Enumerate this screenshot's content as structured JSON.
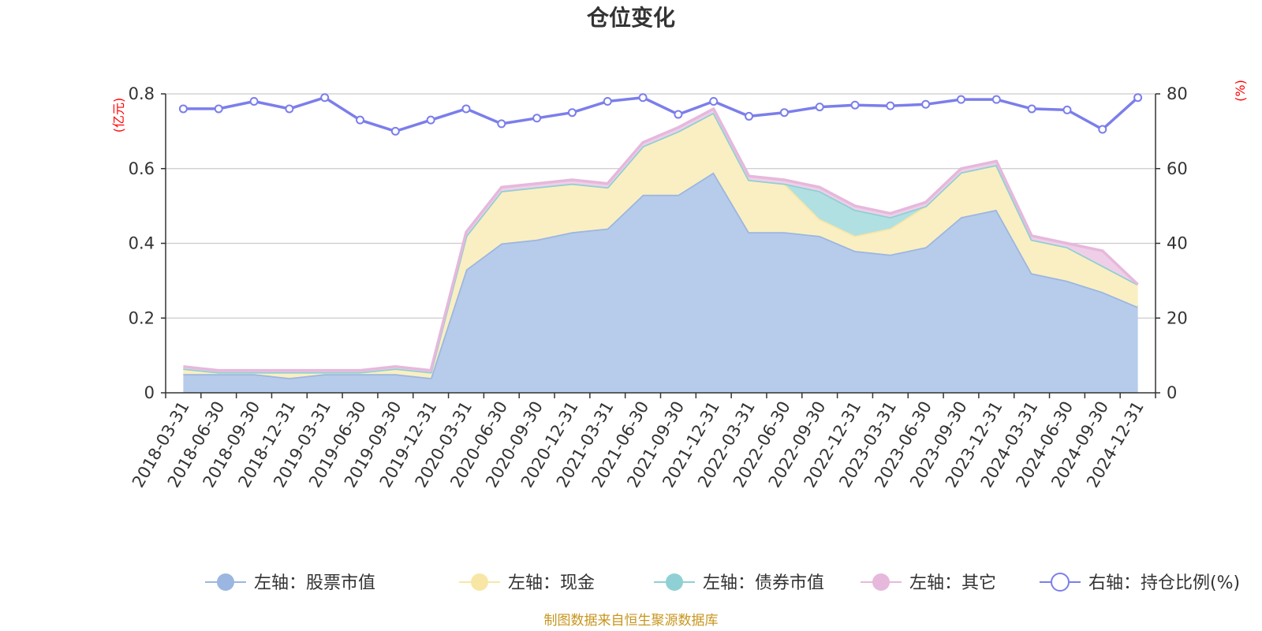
{
  "chart_data": {
    "type": "area",
    "title": "仓位变化",
    "left_axis": {
      "unit_label": "(亿元)",
      "ylim": [
        0,
        0.8
      ],
      "ticks": [
        "0",
        "0.2",
        "0.4",
        "0.6",
        "0.8"
      ]
    },
    "right_axis": {
      "unit_label": "(%)",
      "ylim": [
        0,
        80
      ],
      "ticks": [
        "0",
        "20",
        "40",
        "60",
        "80"
      ]
    },
    "grid": true,
    "legend_position": "bottom",
    "categories": [
      "2018-03-31",
      "2018-06-30",
      "2018-09-30",
      "2018-12-31",
      "2019-03-31",
      "2019-06-30",
      "2019-09-30",
      "2019-12-31",
      "2020-03-31",
      "2020-06-30",
      "2020-09-30",
      "2020-12-31",
      "2021-03-31",
      "2021-06-30",
      "2021-09-30",
      "2021-12-31",
      "2022-03-31",
      "2022-06-30",
      "2022-09-30",
      "2022-12-31",
      "2023-03-31",
      "2023-06-30",
      "2023-09-30",
      "2023-12-31",
      "2024-03-31",
      "2024-06-30",
      "2024-09-30",
      "2024-12-31"
    ],
    "series": [
      {
        "name": "左轴：股票市值",
        "axis": "left",
        "stacked": true,
        "color": "#9bb6e0",
        "fill": "#b7cbeb",
        "values": [
          0.05,
          0.05,
          0.05,
          0.04,
          0.05,
          0.05,
          0.05,
          0.04,
          0.33,
          0.4,
          0.41,
          0.43,
          0.44,
          0.53,
          0.53,
          0.59,
          0.43,
          0.43,
          0.42,
          0.38,
          0.37,
          0.39,
          0.47,
          0.49,
          0.32,
          0.3,
          0.27,
          0.23
        ]
      },
      {
        "name": "左轴：现金",
        "axis": "left",
        "stacked": true,
        "color": "#f8e6a5",
        "fill": "#faefc2",
        "values": [
          0.015,
          0.005,
          0.005,
          0.015,
          0.005,
          0.005,
          0.015,
          0.015,
          0.09,
          0.14,
          0.14,
          0.13,
          0.11,
          0.13,
          0.17,
          0.16,
          0.14,
          0.13,
          0.045,
          0.04,
          0.07,
          0.11,
          0.12,
          0.12,
          0.09,
          0.09,
          0.07,
          0.06
        ]
      },
      {
        "name": "左轴：债券市值",
        "axis": "left",
        "stacked": true,
        "color": "#8fd0d4",
        "fill": "#b1e0e2",
        "values": [
          0,
          0,
          0,
          0,
          0,
          0,
          0,
          0,
          0,
          0,
          0,
          0,
          0,
          0,
          0,
          0,
          0,
          0,
          0.075,
          0.07,
          0.03,
          0,
          0,
          0,
          0,
          0,
          0,
          0
        ]
      },
      {
        "name": "左轴：其它",
        "axis": "left",
        "stacked": true,
        "color": "#e6b8dc",
        "fill": "#efcfe8",
        "values": [
          0.005,
          0.005,
          0.005,
          0.005,
          0.005,
          0.005,
          0.005,
          0.005,
          0.01,
          0.01,
          0.01,
          0.01,
          0.01,
          0.01,
          0.01,
          0.01,
          0.01,
          0.01,
          0.01,
          0.01,
          0.01,
          0.01,
          0.01,
          0.01,
          0.01,
          0.01,
          0.04,
          0.0
        ]
      },
      {
        "name": "右轴：持仓比例(%)",
        "axis": "right",
        "type": "line",
        "color": "#7b7eeb",
        "values": [
          76,
          76,
          78,
          76,
          79,
          73,
          70,
          73,
          76,
          72,
          73.5,
          75,
          78,
          79,
          74.5,
          78,
          74,
          75,
          76.5,
          77,
          76.8,
          77.2,
          78.5,
          78.5,
          76,
          75.7,
          70.5,
          79
        ]
      }
    ],
    "source_note": "制图数据来自恒生聚源数据库"
  }
}
